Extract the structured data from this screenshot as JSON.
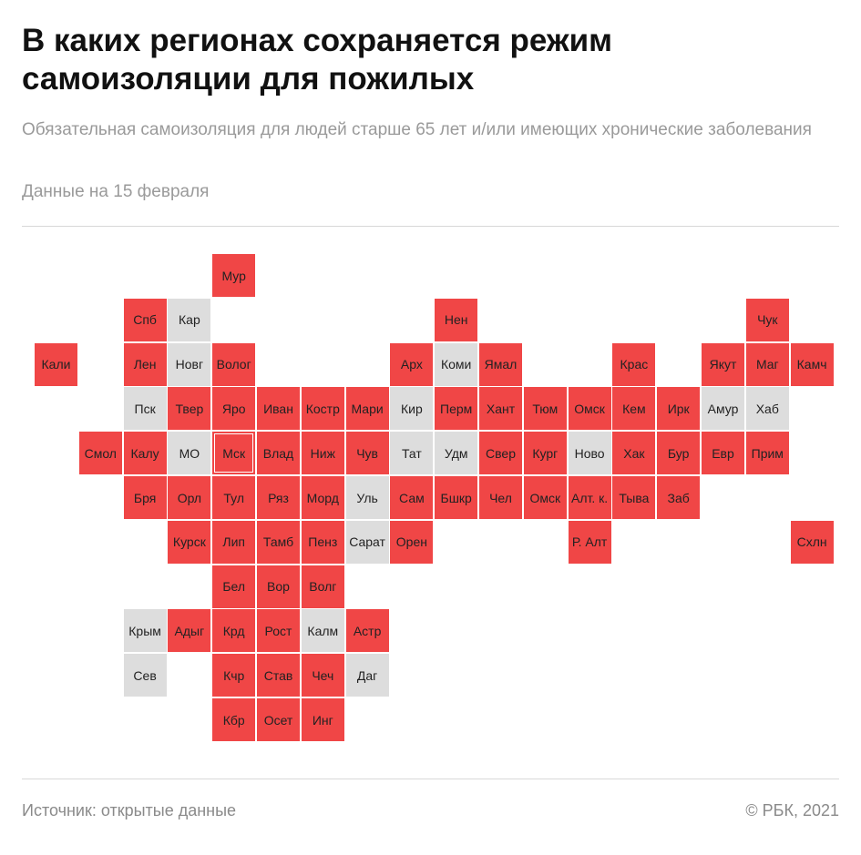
{
  "header": {
    "title": "В каких регионах сохраняется режим самоизоляции для пожилых",
    "subtitle": "Обязательная самоизоляция для людей старше 65 лет и/или имеющих хронические заболевания",
    "date": "Данные на 15 февраля"
  },
  "colors": {
    "restricted": "#f04646",
    "not_restricted": "#dddddd"
  },
  "regions": [
    {
      "label": "Мур",
      "status": "restricted"
    },
    {
      "label": "Спб",
      "status": "restricted"
    },
    {
      "label": "Кар",
      "status": "not_restricted"
    },
    {
      "label": "Нен",
      "status": "restricted"
    },
    {
      "label": "Чук",
      "status": "restricted"
    },
    {
      "label": "Кали",
      "status": "restricted"
    },
    {
      "label": "Лен",
      "status": "restricted"
    },
    {
      "label": "Новг",
      "status": "not_restricted"
    },
    {
      "label": "Волог",
      "status": "restricted"
    },
    {
      "label": "Арх",
      "status": "restricted"
    },
    {
      "label": "Коми",
      "status": "not_restricted"
    },
    {
      "label": "Ямал",
      "status": "restricted"
    },
    {
      "label": "Крас",
      "status": "restricted"
    },
    {
      "label": "Якут",
      "status": "restricted"
    },
    {
      "label": "Маг",
      "status": "restricted"
    },
    {
      "label": "Камч",
      "status": "restricted"
    },
    {
      "label": "Пск",
      "status": "not_restricted"
    },
    {
      "label": "Твер",
      "status": "restricted"
    },
    {
      "label": "Яро",
      "status": "restricted"
    },
    {
      "label": "Иван",
      "status": "restricted"
    },
    {
      "label": "Костр",
      "status": "restricted"
    },
    {
      "label": "Мари",
      "status": "restricted"
    },
    {
      "label": "Кир",
      "status": "not_restricted"
    },
    {
      "label": "Перм",
      "status": "restricted"
    },
    {
      "label": "Хант",
      "status": "restricted"
    },
    {
      "label": "Тюм",
      "status": "restricted"
    },
    {
      "label": "Омск",
      "status": "restricted"
    },
    {
      "label": "Кем",
      "status": "restricted"
    },
    {
      "label": "Ирк",
      "status": "restricted"
    },
    {
      "label": "Амур",
      "status": "not_restricted"
    },
    {
      "label": "Хаб",
      "status": "not_restricted"
    },
    {
      "label": "Смол",
      "status": "restricted"
    },
    {
      "label": "Калу",
      "status": "restricted"
    },
    {
      "label": "МО",
      "status": "not_restricted"
    },
    {
      "label": "Мск",
      "status": "restricted",
      "highlight": true
    },
    {
      "label": "Влад",
      "status": "restricted"
    },
    {
      "label": "Ниж",
      "status": "restricted"
    },
    {
      "label": "Чув",
      "status": "restricted"
    },
    {
      "label": "Тат",
      "status": "not_restricted"
    },
    {
      "label": "Удм",
      "status": "not_restricted"
    },
    {
      "label": "Свер",
      "status": "restricted"
    },
    {
      "label": "Кург",
      "status": "restricted"
    },
    {
      "label": "Ново",
      "status": "not_restricted"
    },
    {
      "label": "Хак",
      "status": "restricted"
    },
    {
      "label": "Бур",
      "status": "restricted"
    },
    {
      "label": "Евр",
      "status": "restricted"
    },
    {
      "label": "Прим",
      "status": "restricted"
    },
    {
      "label": "Бря",
      "status": "restricted"
    },
    {
      "label": "Орл",
      "status": "restricted"
    },
    {
      "label": "Тул",
      "status": "restricted"
    },
    {
      "label": "Ряз",
      "status": "restricted"
    },
    {
      "label": "Морд",
      "status": "restricted"
    },
    {
      "label": "Уль",
      "status": "not_restricted"
    },
    {
      "label": "Сам",
      "status": "restricted"
    },
    {
      "label": "Бшкр",
      "status": "restricted"
    },
    {
      "label": "Чел",
      "status": "restricted"
    },
    {
      "label": "Омск",
      "status": "restricted"
    },
    {
      "label": "Алт. к.",
      "status": "restricted"
    },
    {
      "label": "Тыва",
      "status": "restricted"
    },
    {
      "label": "Заб",
      "status": "restricted"
    },
    {
      "label": "Курск",
      "status": "restricted"
    },
    {
      "label": "Лип",
      "status": "restricted"
    },
    {
      "label": "Тамб",
      "status": "restricted"
    },
    {
      "label": "Пенз",
      "status": "restricted"
    },
    {
      "label": "Сарат",
      "status": "not_restricted"
    },
    {
      "label": "Орен",
      "status": "restricted"
    },
    {
      "label": "Р. Алт",
      "status": "restricted"
    },
    {
      "label": "Схлн",
      "status": "restricted"
    },
    {
      "label": "Бел",
      "status": "restricted"
    },
    {
      "label": "Вор",
      "status": "restricted"
    },
    {
      "label": "Волг",
      "status": "restricted"
    },
    {
      "label": "Крым",
      "status": "not_restricted"
    },
    {
      "label": "Адыг",
      "status": "restricted"
    },
    {
      "label": "Крд",
      "status": "restricted"
    },
    {
      "label": "Рост",
      "status": "restricted"
    },
    {
      "label": "Калм",
      "status": "not_restricted"
    },
    {
      "label": "Астр",
      "status": "restricted"
    },
    {
      "label": "Сев",
      "status": "not_restricted"
    },
    {
      "label": "Кчр",
      "status": "restricted"
    },
    {
      "label": "Став",
      "status": "restricted"
    },
    {
      "label": "Чеч",
      "status": "restricted"
    },
    {
      "label": "Даг",
      "status": "not_restricted"
    },
    {
      "label": "Кбр",
      "status": "restricted"
    },
    {
      "label": "Осет",
      "status": "restricted"
    },
    {
      "label": "Инг",
      "status": "restricted"
    }
  ],
  "footer": {
    "source": "Источник:  открытые данные",
    "copyright": "©  РБК, 2021"
  }
}
